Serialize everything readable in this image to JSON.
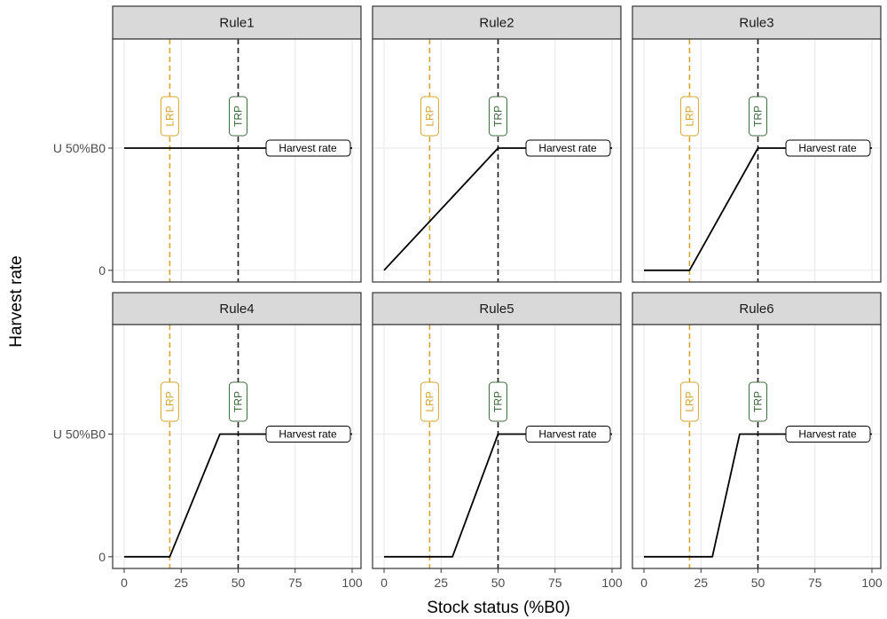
{
  "chart_data": {
    "type": "line",
    "layout": "facet-grid 2x3",
    "xlabel": "Stock status (%B0)",
    "ylabel": "Harvest rate",
    "x_ticks": [
      "0",
      "25",
      "50",
      "75",
      "100"
    ],
    "x_tick_values": [
      0,
      25,
      50,
      75,
      100
    ],
    "y_ticks": [
      "0",
      "U 50%B0"
    ],
    "y_tick_values": [
      0,
      1
    ],
    "xlim": [
      0,
      100
    ],
    "ylim": [
      0,
      1
    ],
    "grid": true,
    "reference_lines": [
      {
        "label": "LRP",
        "x": 20,
        "color": "#d4a52b",
        "style": "dashed"
      },
      {
        "label": "TRP",
        "x": 50,
        "color": "#1a1a1a",
        "style": "dashed",
        "label_color": "#3e6b3e"
      }
    ],
    "series_label": "Harvest rate",
    "line_color": "#000000",
    "panels": [
      {
        "title": "Rule1",
        "x": [
          0,
          50,
          100
        ],
        "y": [
          1,
          1,
          1
        ]
      },
      {
        "title": "Rule2",
        "x": [
          0,
          50,
          100
        ],
        "y": [
          0,
          1,
          1
        ]
      },
      {
        "title": "Rule3",
        "x": [
          0,
          20,
          50,
          100
        ],
        "y": [
          0,
          0,
          1,
          1
        ]
      },
      {
        "title": "Rule4",
        "x": [
          0,
          20,
          42,
          100
        ],
        "y": [
          0,
          0,
          1,
          1
        ]
      },
      {
        "title": "Rule5",
        "x": [
          0,
          30,
          50,
          100
        ],
        "y": [
          0,
          0,
          1,
          1
        ]
      },
      {
        "title": "Rule6",
        "x": [
          0,
          30,
          42,
          100
        ],
        "y": [
          0,
          0,
          1,
          1
        ]
      }
    ]
  },
  "colors": {
    "strip_fill": "#d9d9d9",
    "panel_border": "#333333",
    "grid": "#ebebeb",
    "lrp": "#d4a52b",
    "trp_line": "#1a1a1a",
    "trp_label": "#3e6b3e"
  }
}
